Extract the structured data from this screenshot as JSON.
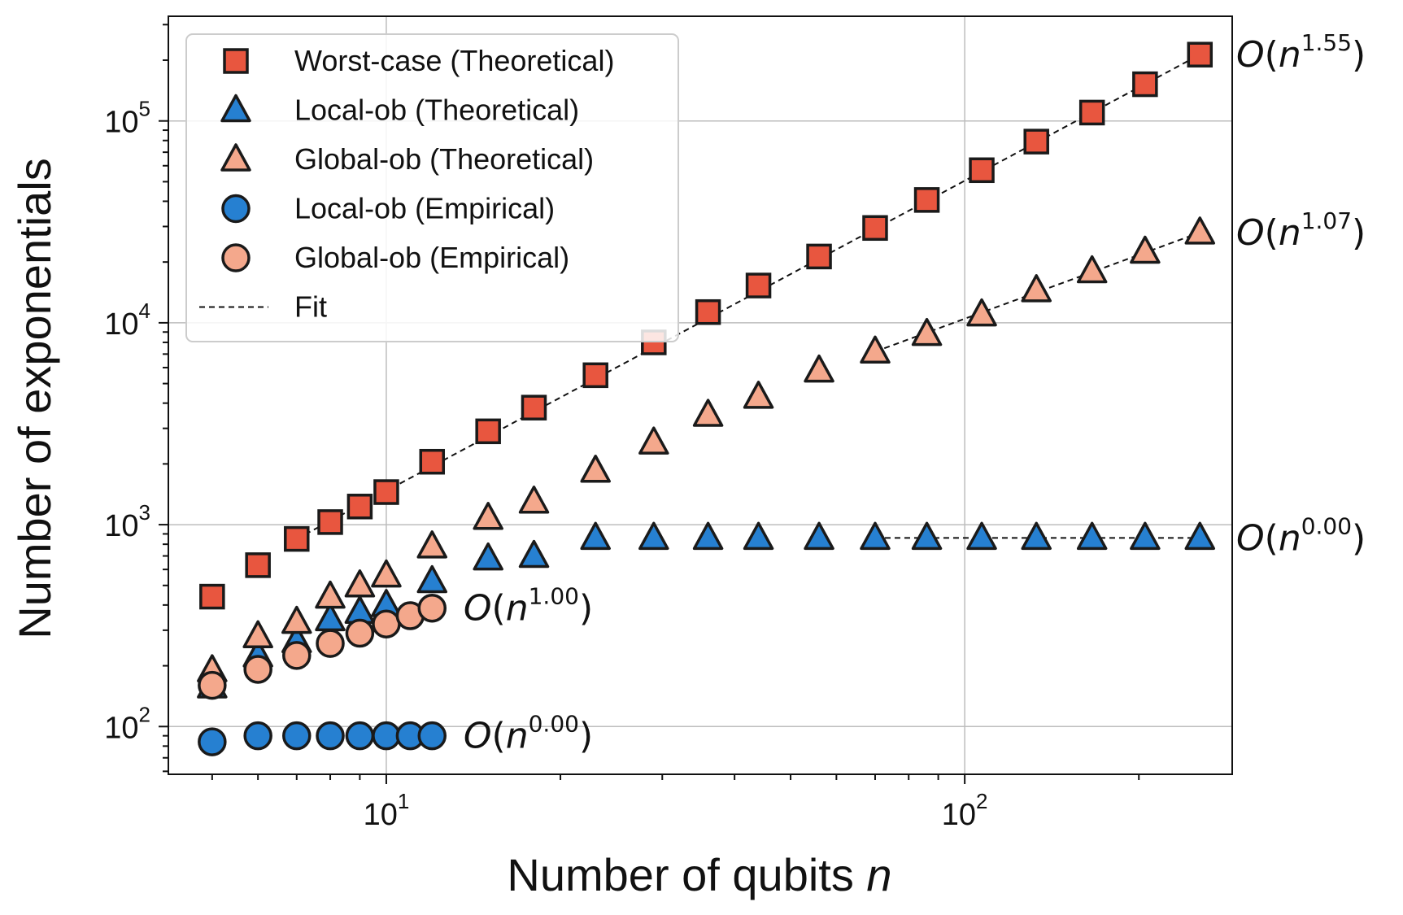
{
  "chart_data": {
    "type": "scatter",
    "xscale": "log",
    "yscale": "log",
    "xlabel": "Number of qubits",
    "xlabel_var": "n",
    "ylabel": "Number of exponentials",
    "xlim": [
      4.2,
      290
    ],
    "ylim": [
      58,
      330000
    ],
    "grid": true,
    "legend_position": "top-left",
    "x_ticks": [
      {
        "value": 10,
        "base": "10",
        "exp": "1"
      },
      {
        "value": 100,
        "base": "10",
        "exp": "2"
      }
    ],
    "y_ticks": [
      {
        "value": 100,
        "base": "10",
        "exp": "2"
      },
      {
        "value": 1000,
        "base": "10",
        "exp": "3"
      },
      {
        "value": 10000,
        "base": "10",
        "exp": "4"
      },
      {
        "value": 100000,
        "base": "10",
        "exp": "5"
      }
    ],
    "series": [
      {
        "name": "Worst-case (Theoretical)",
        "marker": "square",
        "color": "#E8563F",
        "x": [
          5,
          6,
          7,
          8,
          9,
          10,
          12,
          15,
          18,
          23,
          29,
          36,
          44,
          56,
          70,
          86,
          107,
          133,
          166,
          205,
          255
        ],
        "y": [
          440,
          630,
          850,
          1030,
          1230,
          1450,
          2050,
          2900,
          3800,
          5500,
          8000,
          11300,
          15300,
          21300,
          29500,
          40600,
          57000,
          79000,
          110000,
          152000,
          213000
        ]
      },
      {
        "name": "Local-ob (Theoretical)",
        "marker": "triangle",
        "color": "#2680D1",
        "x": [
          5,
          6,
          7,
          8,
          9,
          10,
          12,
          15,
          18,
          23,
          29,
          36,
          44,
          56,
          70,
          86,
          107,
          133,
          166,
          205,
          255
        ],
        "y": [
          158,
          225,
          265,
          340,
          370,
          400,
          525,
          680,
          700,
          860,
          860,
          860,
          860,
          860,
          860,
          860,
          860,
          860,
          860,
          860,
          860
        ]
      },
      {
        "name": "Global-ob (Theoretical)",
        "marker": "triangle",
        "color": "#F4A88C",
        "x": [
          5,
          6,
          7,
          8,
          9,
          10,
          12,
          15,
          18,
          23,
          29,
          36,
          44,
          56,
          70,
          86,
          107,
          133,
          166,
          205,
          255
        ],
        "y": [
          190,
          280,
          330,
          440,
          500,
          560,
          780,
          1080,
          1300,
          1850,
          2550,
          3500,
          4300,
          5800,
          7200,
          8800,
          11000,
          14500,
          18000,
          22500,
          28000
        ]
      },
      {
        "name": "Local-ob (Empirical)",
        "marker": "circle",
        "color": "#2680D1",
        "x": [
          5,
          6,
          7,
          8,
          9,
          10,
          11,
          12
        ],
        "y": [
          84,
          90,
          90,
          90,
          90,
          90,
          90,
          90
        ]
      },
      {
        "name": "Global-ob (Empirical)",
        "marker": "circle",
        "color": "#F4A88C",
        "x": [
          5,
          6,
          7,
          8,
          9,
          10,
          11,
          12
        ],
        "y": [
          160,
          192,
          225,
          258,
          290,
          322,
          354,
          386
        ]
      }
    ],
    "fits": [
      {
        "name": "Fit",
        "x": [
          7,
          255
        ],
        "y": [
          850,
          213000
        ]
      },
      {
        "x": [
          70,
          255
        ],
        "y": [
          7200,
          28000
        ]
      },
      {
        "x": [
          70,
          255
        ],
        "y": [
          860,
          860
        ]
      },
      {
        "x": [
          9,
          12
        ],
        "y": [
          290,
          386
        ]
      },
      {
        "x": [
          9,
          12
        ],
        "y": [
          90,
          90
        ]
      }
    ],
    "annotations": [
      {
        "text_pre": "O(",
        "var": "n",
        "exp": "1.55",
        "text_post": ")",
        "x": 290,
        "y": 213000,
        "side": "outside-right"
      },
      {
        "text_pre": "O(",
        "var": "n",
        "exp": "1.07",
        "text_post": ")",
        "x": 290,
        "y": 28000,
        "side": "outside-right"
      },
      {
        "text_pre": "O(",
        "var": "n",
        "exp": "0.00",
        "text_post": ")",
        "x": 290,
        "y": 860,
        "side": "outside-right"
      },
      {
        "text_pre": "O(",
        "var": "n",
        "exp": "1.00",
        "text_post": ")",
        "x": 13.6,
        "y": 386,
        "side": "inside"
      },
      {
        "text_pre": "O(",
        "var": "n",
        "exp": "0.00",
        "text_post": ")",
        "x": 13.6,
        "y": 90,
        "side": "inside"
      }
    ],
    "legend": [
      {
        "label": "Worst-case (Theoretical)",
        "marker": "square",
        "color": "#E8563F"
      },
      {
        "label": "Local-ob (Theoretical)",
        "marker": "triangle",
        "color": "#2680D1"
      },
      {
        "label": "Global-ob (Theoretical)",
        "marker": "triangle",
        "color": "#F4A88C"
      },
      {
        "label": "Local-ob (Empirical)",
        "marker": "circle",
        "color": "#2680D1"
      },
      {
        "label": "Global-ob (Empirical)",
        "marker": "circle",
        "color": "#F4A88C"
      },
      {
        "label": "Fit",
        "marker": "dashed-line",
        "color": "#111111"
      }
    ]
  }
}
